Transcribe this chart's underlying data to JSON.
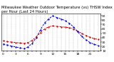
{
  "title": "Milwaukee Weather Outdoor Temperature (vs) THSW Index per Hour (Last 24 Hours)",
  "hours": [
    0,
    1,
    2,
    3,
    4,
    5,
    6,
    7,
    8,
    9,
    10,
    11,
    12,
    13,
    14,
    15,
    16,
    17,
    18,
    19,
    20,
    21,
    22,
    23
  ],
  "temp": [
    33,
    31,
    30,
    29,
    28,
    27,
    29,
    34,
    42,
    52,
    60,
    65,
    67,
    66,
    65,
    64,
    63,
    60,
    55,
    50,
    45,
    41,
    38,
    36
  ],
  "thsw": [
    26,
    23,
    21,
    19,
    17,
    15,
    19,
    27,
    40,
    58,
    74,
    83,
    90,
    86,
    83,
    79,
    73,
    65,
    54,
    43,
    35,
    29,
    25,
    22
  ],
  "temp_color": "#cc0000",
  "thsw_color": "#0000cc",
  "bg_color": "#ffffff",
  "grid_color": "#999999",
  "ylim_min": 10,
  "ylim_max": 95,
  "ytick_values": [
    10,
    20,
    30,
    40,
    50,
    60,
    70,
    80,
    90
  ],
  "ytick_labels": [
    "10",
    "20",
    "30",
    "40",
    "50",
    "60",
    "70",
    "80",
    "90"
  ],
  "xtick_every": 3,
  "title_fontsize": 3.8,
  "tick_fontsize": 3.2,
  "line_width": 0.7
}
